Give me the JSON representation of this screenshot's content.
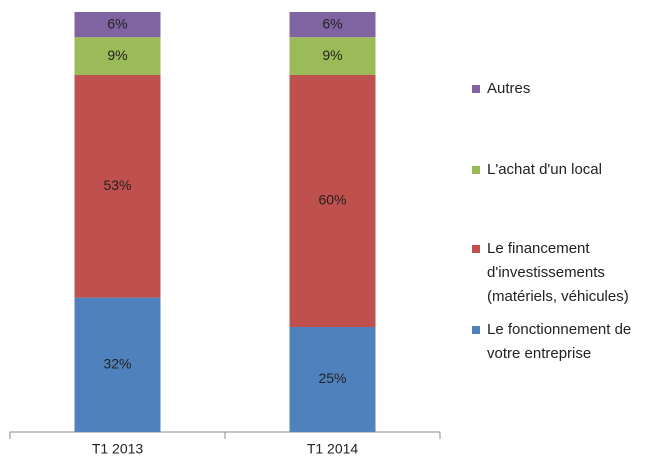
{
  "chart_data": {
    "type": "stacked_bar",
    "categories": [
      "T1 2013",
      "T1 2014"
    ],
    "series": [
      {
        "name": "Le fonctionnement de votre entreprise",
        "color": "#4f81bd",
        "values": [
          32,
          25
        ],
        "value_labels": [
          "32%",
          "25%"
        ]
      },
      {
        "name": "Le financement d'investissements (matériels, véhicules)",
        "color": "#c0504d",
        "values": [
          53,
          60
        ],
        "value_labels": [
          "53%",
          "60%"
        ]
      },
      {
        "name": "L'achat d'un local",
        "color": "#9bbb59",
        "values": [
          9,
          9
        ],
        "value_labels": [
          "9%",
          "9%"
        ]
      },
      {
        "name": "Autres",
        "color": "#8064a2",
        "values": [
          6,
          6
        ],
        "value_labels": [
          "6%",
          "6%"
        ]
      }
    ],
    "ylim": [
      0,
      100
    ]
  }
}
